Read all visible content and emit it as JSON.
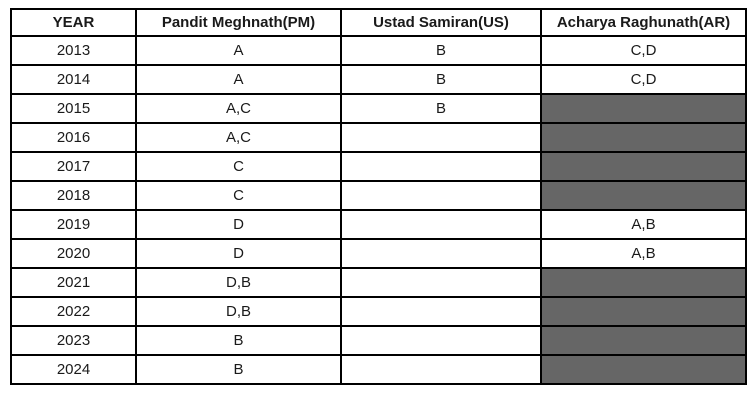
{
  "table": {
    "columns": [
      "YEAR",
      "Pandit Meghnath(PM)",
      "Ustad Samiran(US)",
      "Acharya Raghunath(AR)"
    ],
    "rows": [
      {
        "year": "2013",
        "pm": "A",
        "us": "B",
        "ar": "C,D",
        "ar_shaded": false
      },
      {
        "year": "2014",
        "pm": "A",
        "us": "B",
        "ar": "C,D",
        "ar_shaded": false
      },
      {
        "year": "2015",
        "pm": "A,C",
        "us": "B",
        "ar": "",
        "ar_shaded": true
      },
      {
        "year": "2016",
        "pm": "A,C",
        "us": "",
        "ar": "",
        "ar_shaded": true
      },
      {
        "year": "2017",
        "pm": "C",
        "us": "",
        "ar": "",
        "ar_shaded": true
      },
      {
        "year": "2018",
        "pm": "C",
        "us": "",
        "ar": "",
        "ar_shaded": true
      },
      {
        "year": "2019",
        "pm": "D",
        "us": "",
        "ar": "A,B",
        "ar_shaded": false
      },
      {
        "year": "2020",
        "pm": "D",
        "us": "",
        "ar": "A,B",
        "ar_shaded": false
      },
      {
        "year": "2021",
        "pm": "D,B",
        "us": "",
        "ar": "",
        "ar_shaded": true
      },
      {
        "year": "2022",
        "pm": "D,B",
        "us": "",
        "ar": "",
        "ar_shaded": true
      },
      {
        "year": "2023",
        "pm": "B",
        "us": "",
        "ar": "",
        "ar_shaded": true
      },
      {
        "year": "2024",
        "pm": "B",
        "us": "",
        "ar": "",
        "ar_shaded": true
      }
    ],
    "colors": {
      "shaded_cell": "#666666",
      "border": "#000000",
      "background": "#ffffff"
    }
  }
}
